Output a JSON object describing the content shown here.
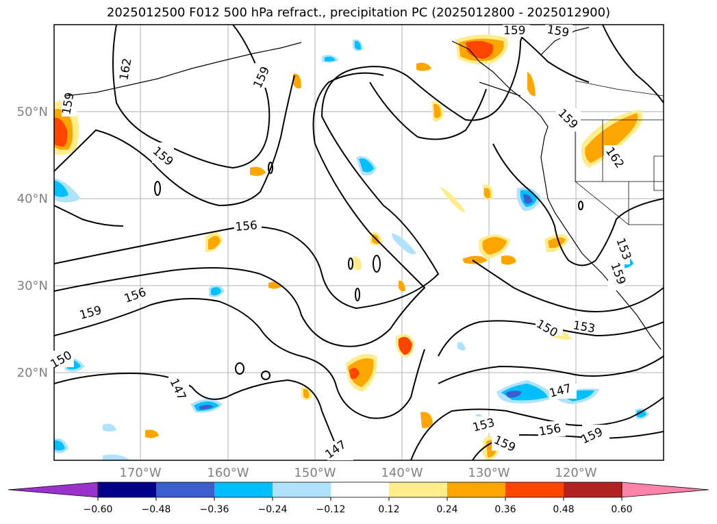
{
  "title": "2025012500 F012 500 hPa refract., precipitation PC (2025012800 - 2025012900)",
  "map": {
    "lon_labels": [
      "170°W",
      "160°W",
      "150°W",
      "140°W",
      "130°W",
      "120°W"
    ],
    "lat_labels": [
      "50°N",
      "40°N",
      "30°N",
      "20°N"
    ],
    "contour_labels": [
      "162",
      "159",
      "159",
      "159",
      "156",
      "156",
      "159",
      "150",
      "147",
      "153",
      "150",
      "147",
      "156",
      "159",
      "153",
      "159",
      "147",
      "159",
      "159",
      "159",
      "162",
      "153",
      "159",
      "159"
    ]
  },
  "colorbar": {
    "ticks": [
      "−0.60",
      "−0.48",
      "−0.36",
      "−0.24",
      "−0.12",
      "0.12",
      "0.24",
      "0.36",
      "0.48",
      "0.60"
    ],
    "colors": [
      "#9a32cd",
      "#00008b",
      "#3a5fcd",
      "#00bfff",
      "#b0e2ff",
      "#ffffff",
      "#ffec8b",
      "#ffa500",
      "#ff4500",
      "#b22222",
      "#ff82ab"
    ]
  }
}
